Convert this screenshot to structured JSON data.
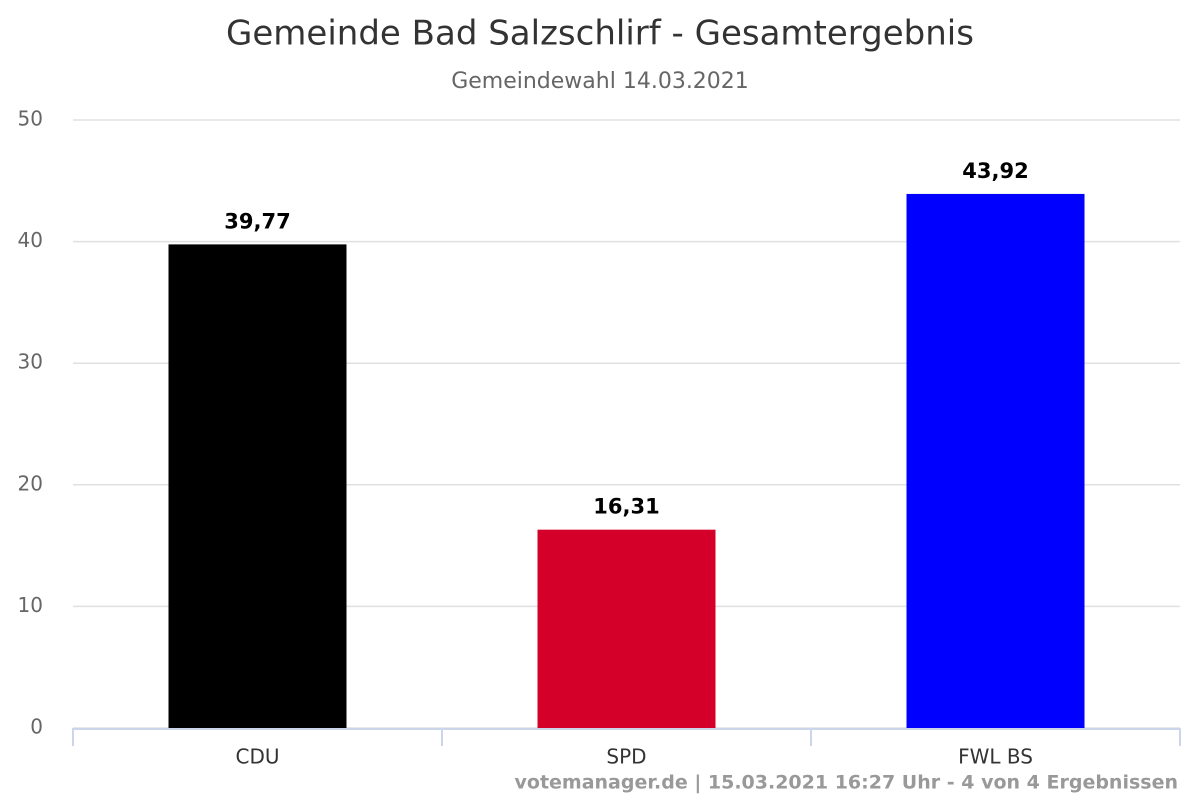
{
  "chart_data": {
    "type": "bar",
    "title": "Gemeinde Bad Salzschlirf - Gesamtergebnis",
    "subtitle": "Gemeindewahl 14.03.2021",
    "credits": "votemanager.de | 15.03.2021 16:27 Uhr - 4 von 4 Ergebnissen",
    "categories": [
      "CDU",
      "SPD",
      "FWL BS"
    ],
    "values": [
      39.77,
      16.31,
      43.92
    ],
    "value_labels": [
      "39,77",
      "16,31",
      "43,92"
    ],
    "colors": [
      "#000000",
      "#d5002a",
      "#0000ff"
    ],
    "ylim": [
      0,
      50
    ],
    "yticks": [
      0,
      10,
      20,
      30,
      40,
      50
    ],
    "grid": true
  }
}
